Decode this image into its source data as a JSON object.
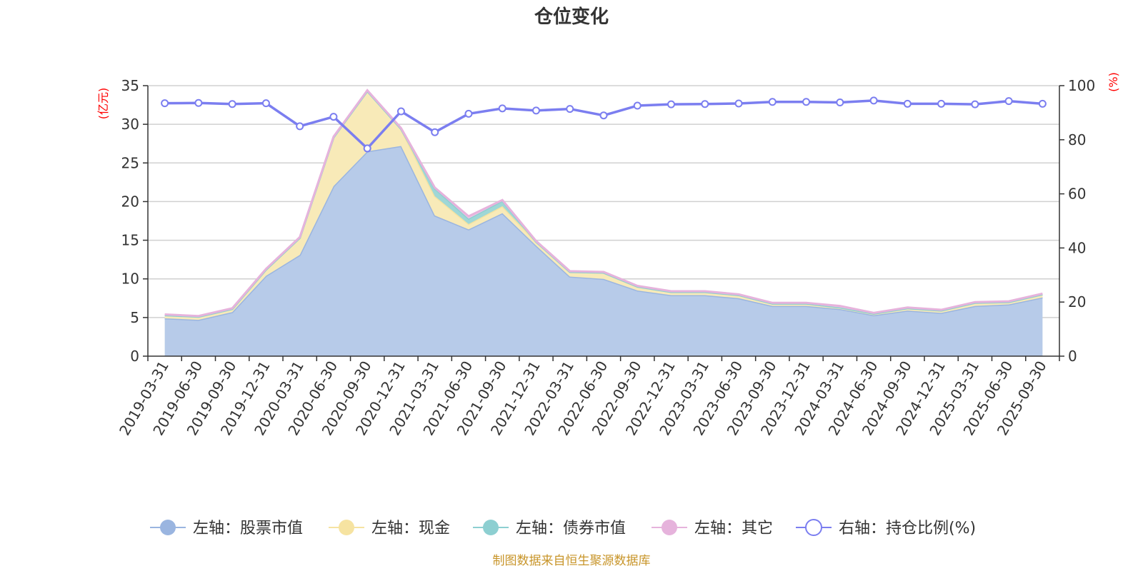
{
  "chart_data": {
    "type": "area",
    "title": "仓位变化",
    "source": "制图数据来自恒生聚源数据库",
    "left_axis": {
      "unit": "(亿元)",
      "ylim": [
        0,
        35
      ],
      "ticks": [
        0,
        5,
        10,
        15,
        20,
        25,
        30,
        35
      ]
    },
    "right_axis": {
      "unit": "(%)",
      "ylim": [
        0,
        100
      ],
      "ticks": [
        0,
        20,
        40,
        60,
        80,
        100
      ]
    },
    "categories": [
      "2019-03-31",
      "2019-06-30",
      "2019-09-30",
      "2019-12-31",
      "2020-03-31",
      "2020-06-30",
      "2020-09-30",
      "2020-12-31",
      "2021-03-31",
      "2021-06-30",
      "2021-09-30",
      "2021-12-31",
      "2022-03-31",
      "2022-06-30",
      "2022-09-30",
      "2022-12-31",
      "2023-03-31",
      "2023-06-30",
      "2023-09-30",
      "2023-12-31",
      "2024-03-31",
      "2024-06-30",
      "2024-09-30",
      "2024-12-31",
      "2025-03-31",
      "2025-06-30",
      "2025-09-30"
    ],
    "series": [
      {
        "name": "左轴：股票市值",
        "axis": "left",
        "color": "#9ab5e0",
        "fill": "#b7cbe9",
        "values": [
          4.9,
          4.7,
          5.7,
          10.4,
          13.1,
          22.0,
          26.5,
          27.2,
          18.2,
          16.4,
          18.5,
          14.3,
          10.3,
          10.0,
          8.5,
          7.9,
          7.9,
          7.5,
          6.5,
          6.5,
          6.1,
          5.3,
          5.9,
          5.6,
          6.5,
          6.7,
          7.6
        ]
      },
      {
        "name": "左轴：现金",
        "axis": "left",
        "color": "#f6e3a1",
        "fill": "#f8eab8",
        "values": [
          0.4,
          0.4,
          0.4,
          0.8,
          2.2,
          6.3,
          7.8,
          2.2,
          2.5,
          0.7,
          0.9,
          0.5,
          0.6,
          0.8,
          0.5,
          0.4,
          0.4,
          0.4,
          0.3,
          0.3,
          0.2,
          0.2,
          0.3,
          0.3,
          0.4,
          0.3,
          0.4
        ]
      },
      {
        "name": "左轴：债券市值",
        "axis": "left",
        "color": "#8dcfd1",
        "fill": "#9fd7d6",
        "values": [
          0,
          0,
          0,
          0,
          0,
          0,
          0,
          0,
          1.0,
          0.7,
          0.7,
          0,
          0,
          0,
          0,
          0,
          0,
          0,
          0,
          0,
          0,
          0,
          0,
          0,
          0,
          0,
          0
        ]
      },
      {
        "name": "左轴：其它",
        "axis": "left",
        "color": "#e6b3dc",
        "fill": "#edc6e6",
        "values": [
          0.1,
          0.1,
          0.1,
          0.1,
          0.1,
          0.1,
          0.1,
          0.1,
          0.1,
          0.3,
          0.1,
          0.1,
          0.1,
          0.1,
          0.1,
          0.1,
          0.1,
          0.1,
          0.1,
          0.1,
          0.2,
          0.1,
          0.1,
          0.1,
          0.1,
          0.1,
          0.1
        ]
      },
      {
        "name": "右轴：持仓比例(%)",
        "axis": "right",
        "color": "#7b7ef0",
        "values": [
          93.5,
          93.6,
          93.2,
          93.5,
          85.0,
          88.5,
          76.8,
          90.5,
          82.8,
          89.6,
          91.6,
          90.8,
          91.4,
          89.0,
          92.6,
          93.1,
          93.2,
          93.4,
          94.0,
          94.0,
          93.8,
          94.5,
          93.3,
          93.3,
          93.1,
          94.3,
          93.3
        ]
      }
    ]
  }
}
